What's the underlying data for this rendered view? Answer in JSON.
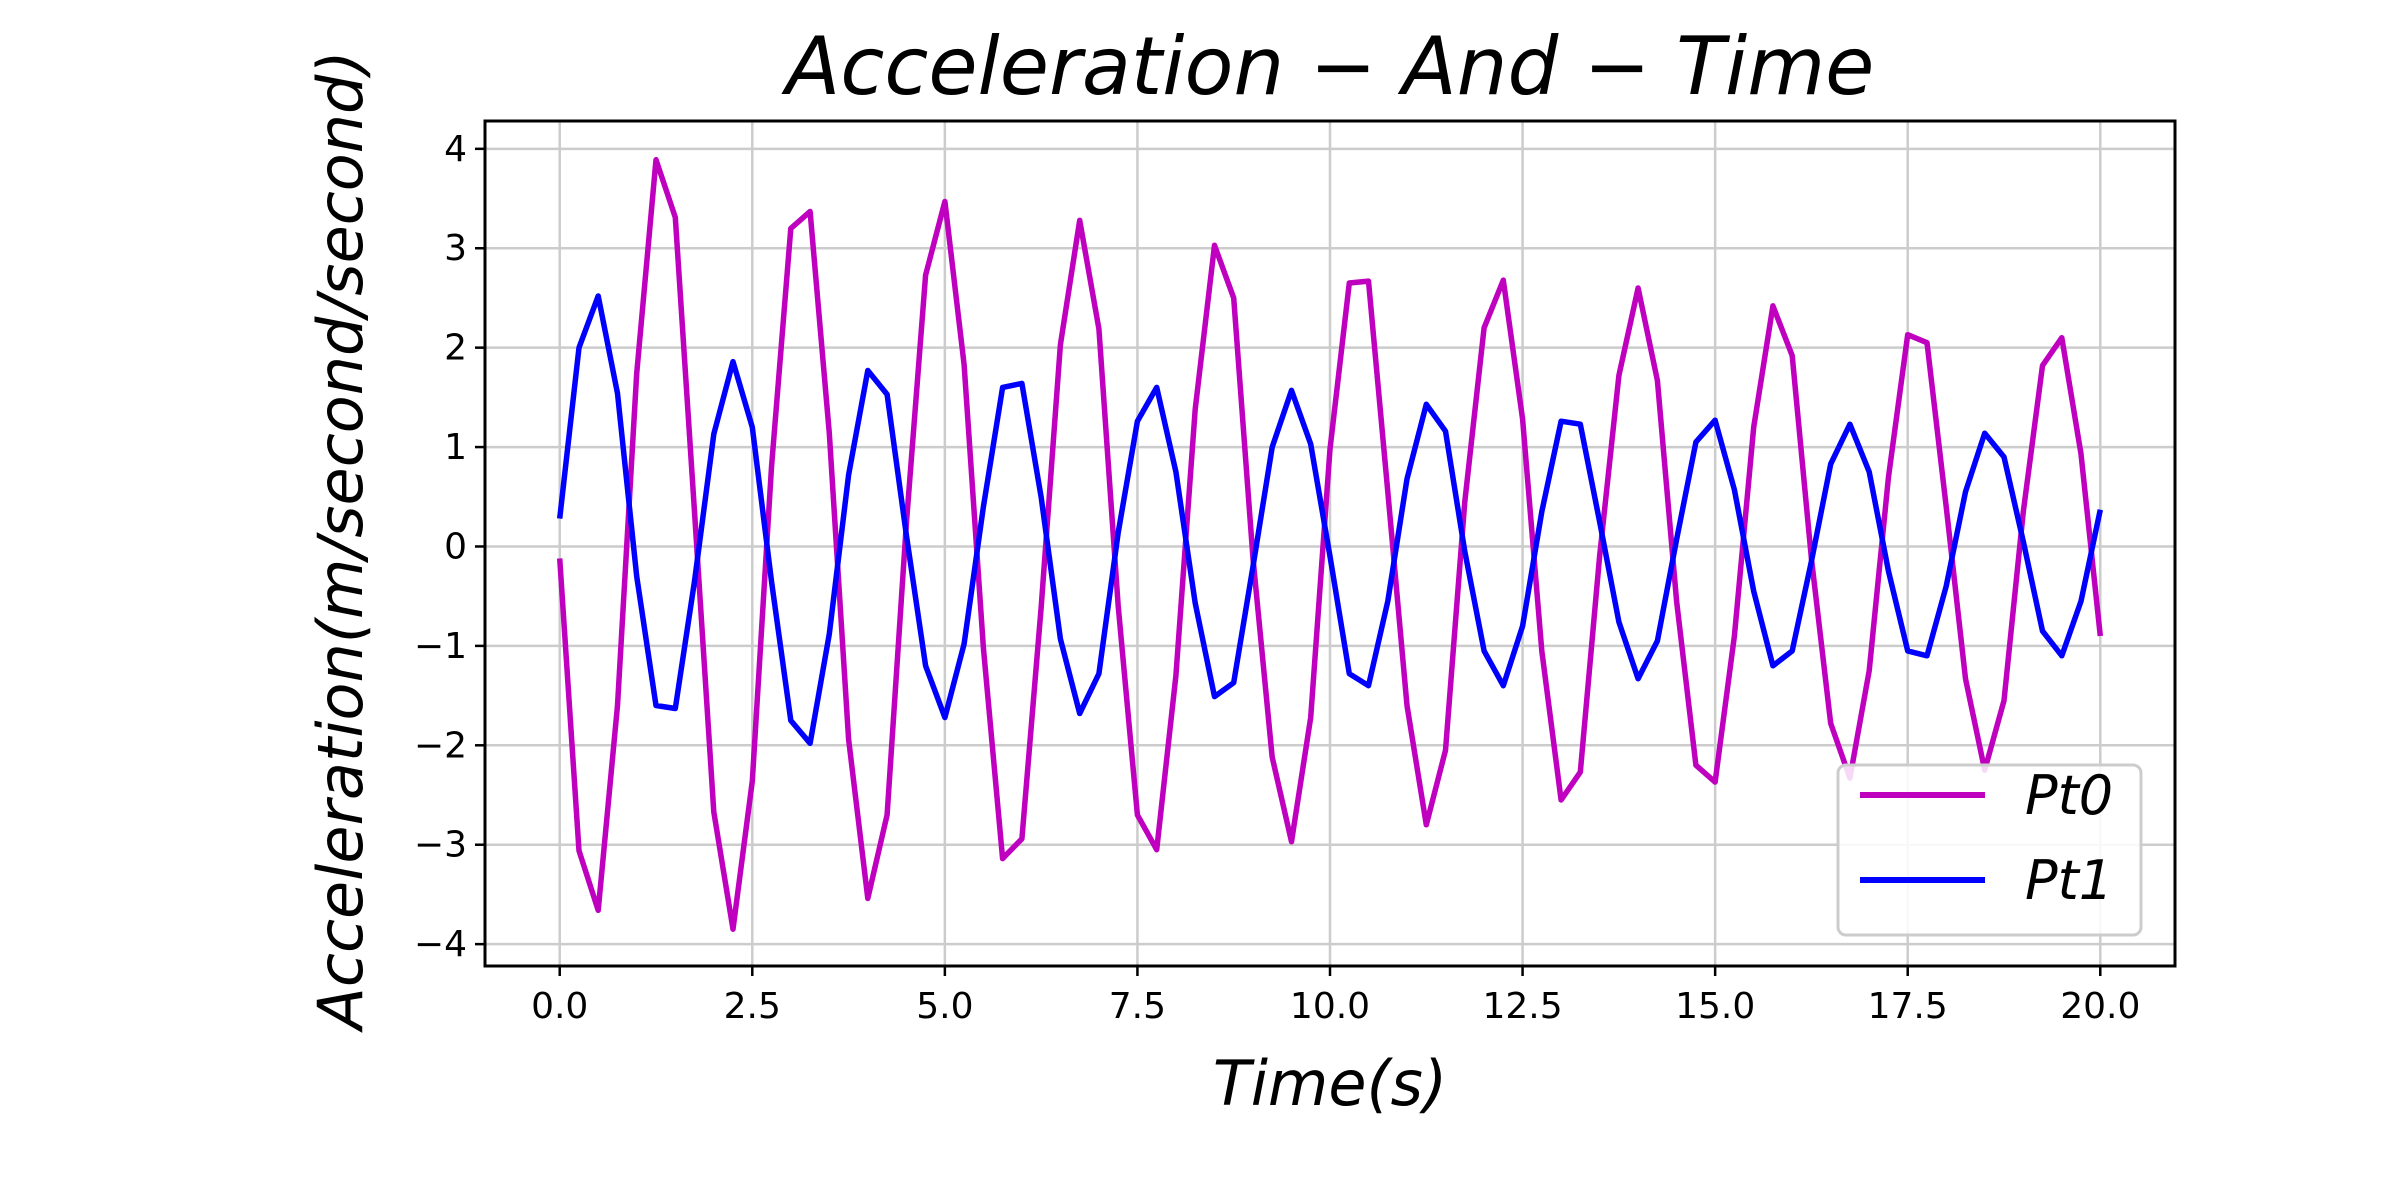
{
  "chart_data": {
    "type": "line",
    "title": "Acceleration − And − Time",
    "xlabel": "Time(s)",
    "ylabel": "Acceleration(m/second/second)",
    "xlim": [
      -0.97,
      20.97
    ],
    "ylim": [
      -4.22,
      4.28
    ],
    "xticks": [
      0.0,
      2.5,
      5.0,
      7.5,
      10.0,
      12.5,
      15.0,
      17.5,
      20.0
    ],
    "xtick_labels": [
      "0.0",
      "2.5",
      "5.0",
      "7.5",
      "10.0",
      "12.5",
      "15.0",
      "17.5",
      "20.0"
    ],
    "yticks": [
      4,
      3,
      2,
      1,
      0,
      -1,
      -2,
      -3,
      -4
    ],
    "ytick_labels": [
      "4",
      "3",
      "2",
      "1",
      "0",
      "−1",
      "−2",
      "−3",
      "−4"
    ],
    "grid": true,
    "legend_position": "lower-right",
    "x": [
      0.0,
      0.25,
      0.5,
      0.75,
      1.0,
      1.25,
      1.5,
      1.75,
      2.0,
      2.25,
      2.5,
      2.75,
      3.0,
      3.25,
      3.5,
      3.75,
      4.0,
      4.25,
      4.5,
      4.75,
      5.0,
      5.25,
      5.5,
      5.75,
      6.0,
      6.25,
      6.5,
      6.75,
      7.0,
      7.25,
      7.5,
      7.75,
      8.0,
      8.25,
      8.5,
      8.75,
      9.0,
      9.25,
      9.5,
      9.75,
      10.0,
      10.25,
      10.5,
      10.75,
      11.0,
      11.25,
      11.5,
      11.75,
      12.0,
      12.25,
      12.5,
      12.75,
      13.0,
      13.25,
      13.5,
      13.75,
      14.0,
      14.25,
      14.5,
      14.75,
      15.0,
      15.25,
      15.5,
      15.75,
      16.0,
      16.25,
      16.5,
      16.75,
      17.0,
      17.25,
      17.5,
      17.75,
      18.0,
      18.25,
      18.5,
      18.75,
      19.0,
      19.25,
      19.5,
      19.75,
      20.0
    ],
    "series": [
      {
        "name": "Pt0",
        "color": "#bf00bf",
        "values": [
          -0.12,
          -3.06,
          -3.66,
          -1.6,
          1.74,
          3.89,
          3.31,
          0.35,
          -2.67,
          -3.85,
          -2.36,
          0.8,
          3.2,
          3.37,
          1.14,
          -1.94,
          -3.54,
          -2.7,
          0.22,
          2.73,
          3.47,
          1.83,
          -1.02,
          -3.14,
          -2.94,
          -0.62,
          2.03,
          3.28,
          2.19,
          -0.6,
          -2.7,
          -3.05,
          -1.3,
          1.38,
          3.03,
          2.5,
          -0.12,
          -2.12,
          -2.97,
          -1.72,
          0.98,
          2.65,
          2.67,
          0.55,
          -1.6,
          -2.8,
          -2.05,
          0.45,
          2.2,
          2.68,
          1.28,
          -1.05,
          -2.55,
          -2.27,
          -0.1,
          1.72,
          2.6,
          1.67,
          -0.55,
          -2.2,
          -2.37,
          -0.9,
          1.2,
          2.42,
          1.92,
          -0.12,
          -1.78,
          -2.33,
          -1.25,
          0.7,
          2.13,
          2.05,
          0.4,
          -1.33,
          -2.25,
          -1.55,
          0.35,
          1.82,
          2.1,
          0.93,
          -0.9
        ]
      },
      {
        "name": "Pt1",
        "color": "#0000ff",
        "values": [
          0.28,
          2.0,
          2.52,
          1.54,
          -0.3,
          -1.6,
          -1.63,
          -0.35,
          1.13,
          1.86,
          1.2,
          -0.35,
          -1.75,
          -1.98,
          -0.88,
          0.72,
          1.77,
          1.53,
          0.12,
          -1.2,
          -1.72,
          -0.98,
          0.4,
          1.6,
          1.64,
          0.5,
          -0.93,
          -1.68,
          -1.28,
          0.14,
          1.26,
          1.6,
          0.75,
          -0.57,
          -1.51,
          -1.37,
          -0.2,
          1.0,
          1.57,
          1.03,
          -0.1,
          -1.28,
          -1.4,
          -0.55,
          0.68,
          1.43,
          1.16,
          -0.05,
          -1.05,
          -1.4,
          -0.8,
          0.35,
          1.26,
          1.23,
          0.25,
          -0.76,
          -1.33,
          -0.95,
          0.07,
          1.05,
          1.27,
          0.57,
          -0.45,
          -1.2,
          -1.05,
          -0.15,
          0.83,
          1.23,
          0.75,
          -0.25,
          -1.05,
          -1.1,
          -0.4,
          0.55,
          1.14,
          0.9,
          0.05,
          -0.85,
          -1.1,
          -0.55,
          0.37
        ]
      }
    ]
  }
}
